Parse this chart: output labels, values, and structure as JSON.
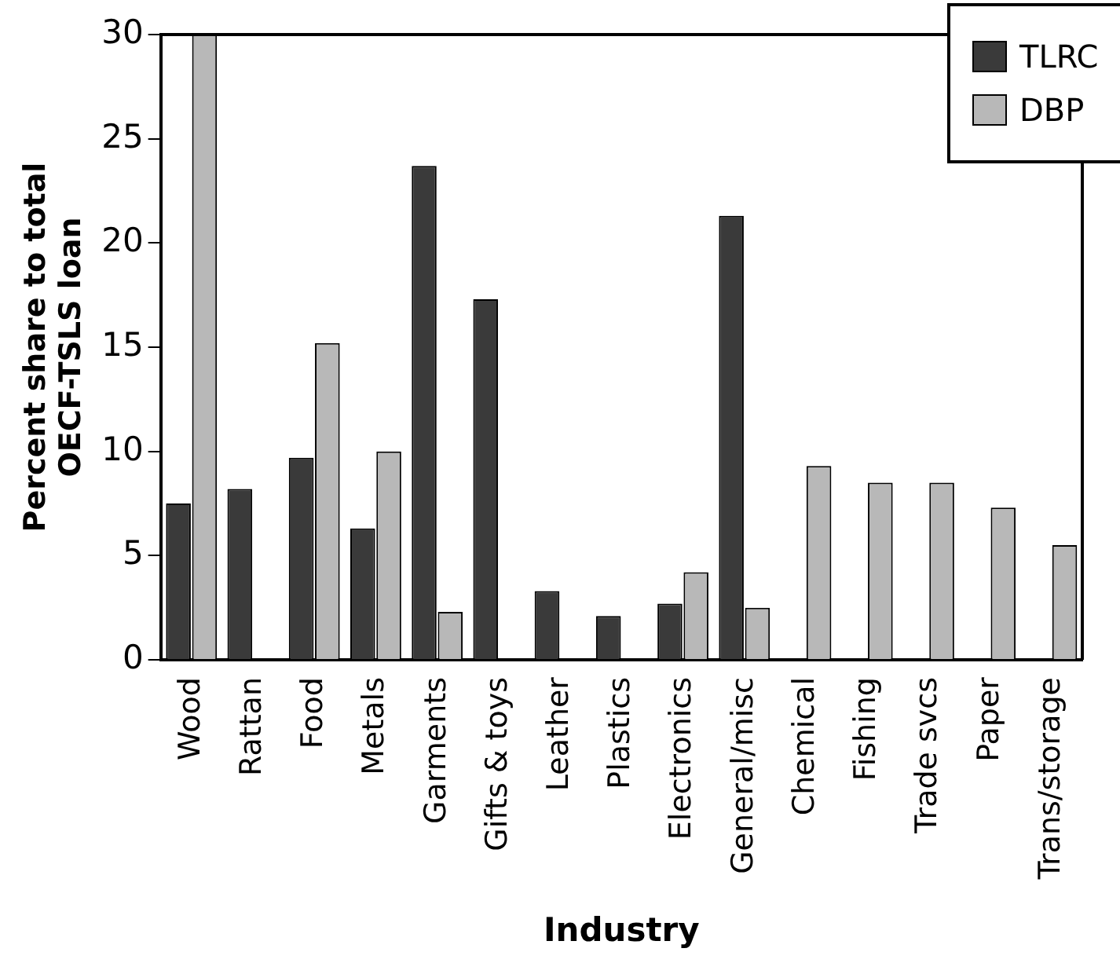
{
  "chart_data": {
    "type": "bar",
    "xlabel": "Industry",
    "ylabel": "Percent share to total\nOECF-TSLS loan",
    "categories": [
      "Wood",
      "Rattan",
      "Food",
      "Metals",
      "Garments",
      "Gifts & toys",
      "Leather",
      "Plastics",
      "Electronics",
      "General/misc",
      "Chemical",
      "Fishing",
      "Trade svcs",
      "Paper",
      "Trans/storage"
    ],
    "series": [
      {
        "name": "TLRC",
        "color": "#3a3a3a",
        "values": [
          7.5,
          8.2,
          9.7,
          6.3,
          23.7,
          17.3,
          3.3,
          2.1,
          2.7,
          21.3,
          0,
          0,
          0,
          0,
          0
        ]
      },
      {
        "name": "DBP",
        "color": "#b8b8b8",
        "values": [
          30,
          0,
          15.2,
          10,
          2.3,
          0,
          0,
          0,
          4.2,
          2.5,
          9.3,
          8.5,
          8.5,
          7.3,
          5.5
        ]
      }
    ],
    "ylim": [
      0,
      30
    ],
    "yticks": [
      0,
      5,
      10,
      15,
      20,
      25,
      30
    ],
    "grid": false,
    "legend": "top right"
  }
}
